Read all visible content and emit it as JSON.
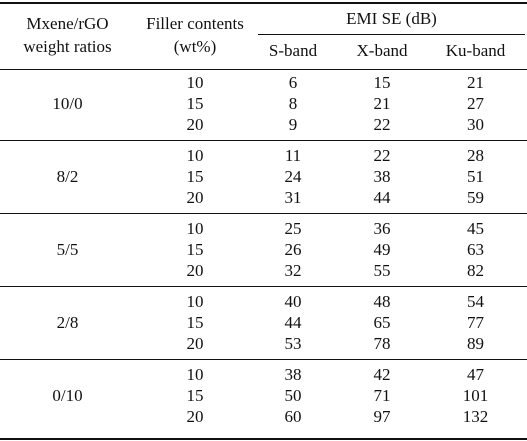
{
  "table": {
    "headers": {
      "ratio_line1": "Mxene/rGO",
      "ratio_line2": "weight ratios",
      "filler_line1": "Filler contents",
      "filler_line2": "(wt%)",
      "emi_group": "EMI SE (dB)",
      "bands": [
        "S-band",
        "X-band",
        "Ku-band"
      ]
    },
    "groups": [
      {
        "ratio": "10/0",
        "rows": [
          {
            "filler": "10",
            "s": "6",
            "x": "15",
            "ku": "21"
          },
          {
            "filler": "15",
            "s": "8",
            "x": "21",
            "ku": "27"
          },
          {
            "filler": "20",
            "s": "9",
            "x": "22",
            "ku": "30"
          }
        ]
      },
      {
        "ratio": "8/2",
        "rows": [
          {
            "filler": "10",
            "s": "11",
            "x": "22",
            "ku": "28"
          },
          {
            "filler": "15",
            "s": "24",
            "x": "38",
            "ku": "51"
          },
          {
            "filler": "20",
            "s": "31",
            "x": "44",
            "ku": "59"
          }
        ]
      },
      {
        "ratio": "5/5",
        "rows": [
          {
            "filler": "10",
            "s": "25",
            "x": "36",
            "ku": "45"
          },
          {
            "filler": "15",
            "s": "26",
            "x": "49",
            "ku": "63"
          },
          {
            "filler": "20",
            "s": "32",
            "x": "55",
            "ku": "82"
          }
        ]
      },
      {
        "ratio": "2/8",
        "rows": [
          {
            "filler": "10",
            "s": "40",
            "x": "48",
            "ku": "54"
          },
          {
            "filler": "15",
            "s": "44",
            "x": "65",
            "ku": "77"
          },
          {
            "filler": "20",
            "s": "53",
            "x": "78",
            "ku": "89"
          }
        ]
      },
      {
        "ratio": "0/10",
        "rows": [
          {
            "filler": "10",
            "s": "38",
            "x": "42",
            "ku": "47"
          },
          {
            "filler": "15",
            "s": "50",
            "x": "71",
            "ku": "101"
          },
          {
            "filler": "20",
            "s": "60",
            "x": "97",
            "ku": "132"
          }
        ]
      }
    ]
  }
}
